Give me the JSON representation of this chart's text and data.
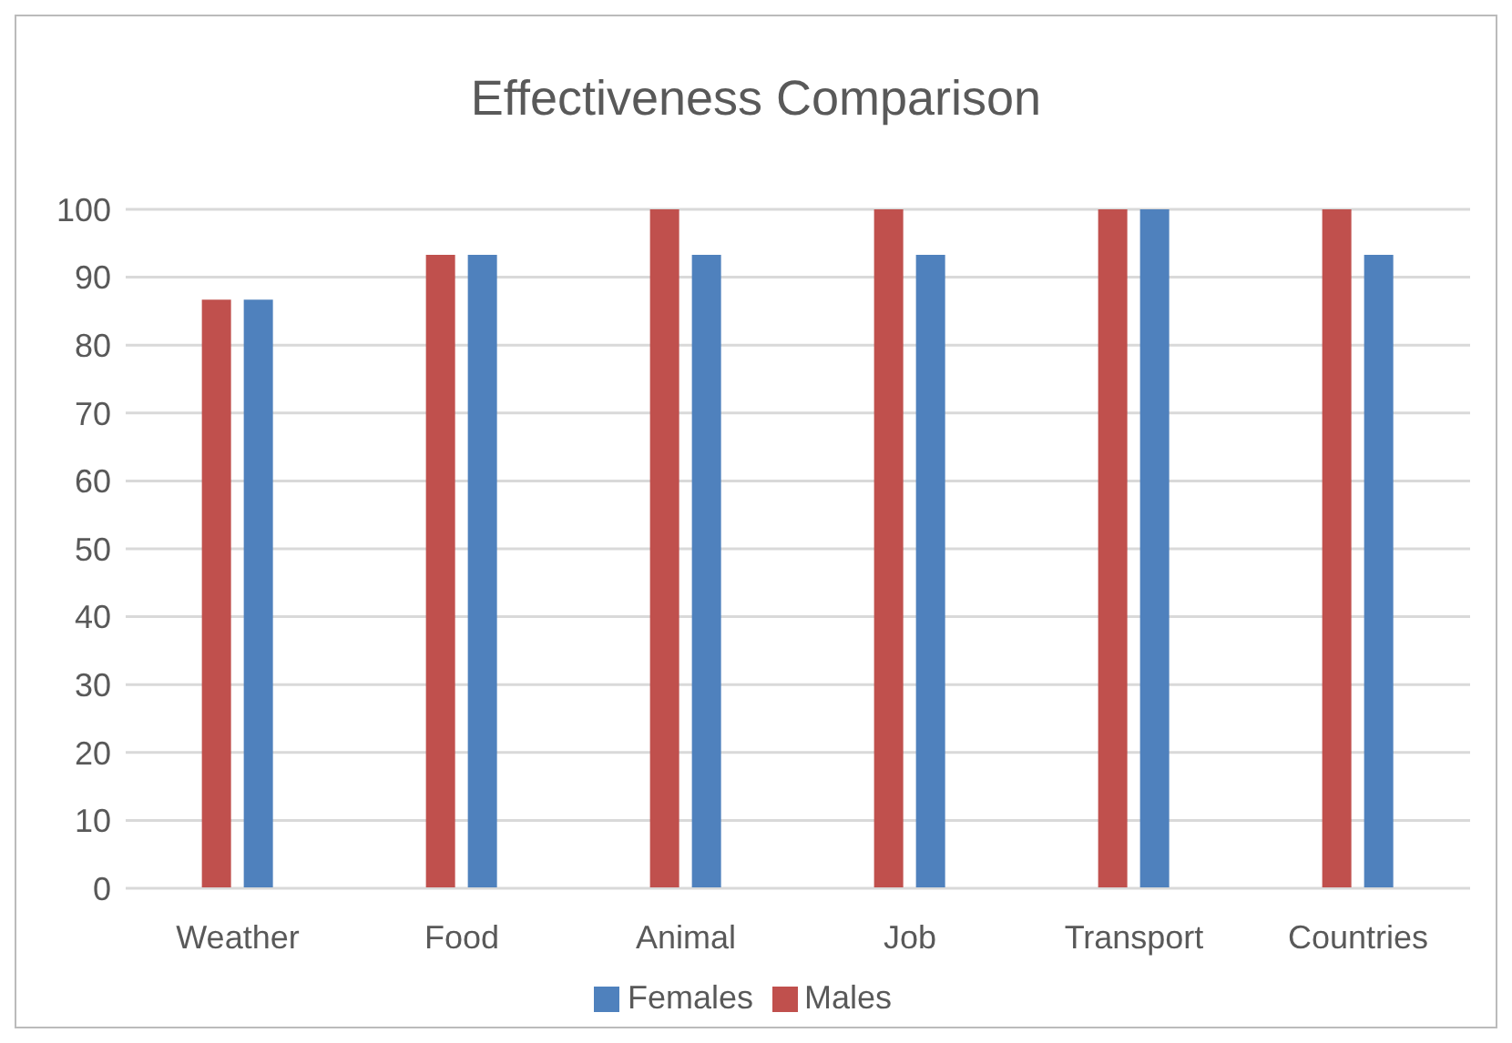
{
  "chart_data": {
    "type": "bar",
    "title": "Effectiveness Comparison",
    "categories": [
      "Weather",
      "Food",
      "Animal",
      "Job",
      "Transport",
      "Countries"
    ],
    "series": [
      {
        "name": "Males",
        "color": "#c0504d",
        "values": [
          86.7,
          93.3,
          100,
          100,
          100,
          100
        ]
      },
      {
        "name": "Females",
        "color": "#4f81bd",
        "values": [
          86.7,
          93.3,
          93.3,
          93.3,
          100,
          93.3
        ]
      }
    ],
    "ylim": [
      0,
      100
    ],
    "yticks": [
      0,
      10,
      20,
      30,
      40,
      50,
      60,
      70,
      80,
      90,
      100
    ],
    "grid": "y",
    "legend": "bottom"
  }
}
